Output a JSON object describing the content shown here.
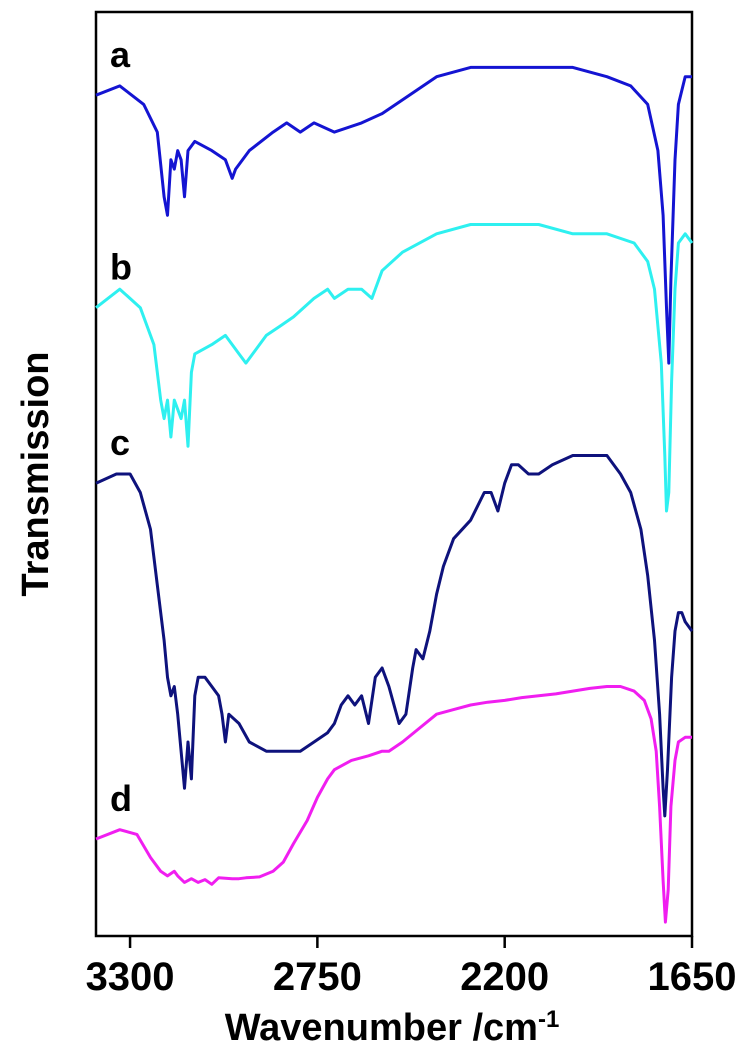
{
  "chart_data": {
    "type": "line",
    "xlabel": "Wavenumber /cm",
    "xlabel_superscript": "-1",
    "ylabel": "Transmission",
    "xlim": [
      3400,
      1650
    ],
    "x_reversed": true,
    "xticks": [
      3300,
      2750,
      2200,
      1650
    ],
    "y_ticks_shown": false,
    "grid": false,
    "series": [
      {
        "name": "a",
        "color": "#1414d2",
        "points": [
          [
            3400,
            0.91
          ],
          [
            3330,
            0.92
          ],
          [
            3260,
            0.9
          ],
          [
            3220,
            0.87
          ],
          [
            3200,
            0.8
          ],
          [
            3190,
            0.78
          ],
          [
            3180,
            0.84
          ],
          [
            3170,
            0.83
          ],
          [
            3160,
            0.85
          ],
          [
            3150,
            0.84
          ],
          [
            3140,
            0.8
          ],
          [
            3130,
            0.85
          ],
          [
            3110,
            0.86
          ],
          [
            3060,
            0.85
          ],
          [
            3020,
            0.84
          ],
          [
            3000,
            0.82
          ],
          [
            2990,
            0.83
          ],
          [
            2950,
            0.85
          ],
          [
            2880,
            0.87
          ],
          [
            2840,
            0.88
          ],
          [
            2800,
            0.87
          ],
          [
            2760,
            0.88
          ],
          [
            2700,
            0.87
          ],
          [
            2620,
            0.88
          ],
          [
            2560,
            0.89
          ],
          [
            2480,
            0.91
          ],
          [
            2400,
            0.93
          ],
          [
            2300,
            0.94
          ],
          [
            2200,
            0.94
          ],
          [
            2100,
            0.94
          ],
          [
            2000,
            0.94
          ],
          [
            1900,
            0.93
          ],
          [
            1830,
            0.92
          ],
          [
            1780,
            0.9
          ],
          [
            1750,
            0.85
          ],
          [
            1735,
            0.78
          ],
          [
            1725,
            0.68
          ],
          [
            1718,
            0.62
          ],
          [
            1712,
            0.71
          ],
          [
            1700,
            0.84
          ],
          [
            1690,
            0.9
          ],
          [
            1670,
            0.93
          ],
          [
            1650,
            0.93
          ]
        ]
      },
      {
        "name": "b",
        "color": "#2ef0f0",
        "points": [
          [
            3400,
            0.68
          ],
          [
            3330,
            0.7
          ],
          [
            3270,
            0.68
          ],
          [
            3230,
            0.64
          ],
          [
            3210,
            0.58
          ],
          [
            3200,
            0.56
          ],
          [
            3190,
            0.58
          ],
          [
            3180,
            0.54
          ],
          [
            3170,
            0.58
          ],
          [
            3160,
            0.57
          ],
          [
            3150,
            0.56
          ],
          [
            3140,
            0.58
          ],
          [
            3130,
            0.53
          ],
          [
            3120,
            0.61
          ],
          [
            3110,
            0.63
          ],
          [
            3060,
            0.64
          ],
          [
            3020,
            0.65
          ],
          [
            3000,
            0.64
          ],
          [
            2980,
            0.63
          ],
          [
            2960,
            0.62
          ],
          [
            2940,
            0.63
          ],
          [
            2900,
            0.65
          ],
          [
            2860,
            0.66
          ],
          [
            2820,
            0.67
          ],
          [
            2760,
            0.69
          ],
          [
            2720,
            0.7
          ],
          [
            2700,
            0.69
          ],
          [
            2660,
            0.7
          ],
          [
            2620,
            0.7
          ],
          [
            2590,
            0.69
          ],
          [
            2560,
            0.72
          ],
          [
            2500,
            0.74
          ],
          [
            2400,
            0.76
          ],
          [
            2300,
            0.77
          ],
          [
            2200,
            0.77
          ],
          [
            2100,
            0.77
          ],
          [
            2000,
            0.76
          ],
          [
            1900,
            0.76
          ],
          [
            1820,
            0.75
          ],
          [
            1780,
            0.73
          ],
          [
            1760,
            0.7
          ],
          [
            1740,
            0.62
          ],
          [
            1730,
            0.52
          ],
          [
            1725,
            0.46
          ],
          [
            1718,
            0.48
          ],
          [
            1710,
            0.6
          ],
          [
            1700,
            0.7
          ],
          [
            1690,
            0.75
          ],
          [
            1670,
            0.76
          ],
          [
            1650,
            0.75
          ]
        ]
      },
      {
        "name": "c",
        "color": "#0e127c",
        "points": [
          [
            3400,
            0.49
          ],
          [
            3340,
            0.5
          ],
          [
            3300,
            0.5
          ],
          [
            3270,
            0.48
          ],
          [
            3240,
            0.44
          ],
          [
            3220,
            0.38
          ],
          [
            3200,
            0.32
          ],
          [
            3190,
            0.28
          ],
          [
            3180,
            0.26
          ],
          [
            3170,
            0.27
          ],
          [
            3160,
            0.24
          ],
          [
            3150,
            0.2
          ],
          [
            3140,
            0.16
          ],
          [
            3130,
            0.21
          ],
          [
            3120,
            0.17
          ],
          [
            3110,
            0.26
          ],
          [
            3100,
            0.28
          ],
          [
            3080,
            0.28
          ],
          [
            3060,
            0.27
          ],
          [
            3040,
            0.26
          ],
          [
            3030,
            0.24
          ],
          [
            3020,
            0.21
          ],
          [
            3010,
            0.24
          ],
          [
            2980,
            0.23
          ],
          [
            2950,
            0.21
          ],
          [
            2900,
            0.2
          ],
          [
            2850,
            0.2
          ],
          [
            2800,
            0.2
          ],
          [
            2760,
            0.21
          ],
          [
            2720,
            0.22
          ],
          [
            2700,
            0.23
          ],
          [
            2680,
            0.25
          ],
          [
            2660,
            0.26
          ],
          [
            2640,
            0.25
          ],
          [
            2620,
            0.26
          ],
          [
            2600,
            0.23
          ],
          [
            2580,
            0.28
          ],
          [
            2560,
            0.29
          ],
          [
            2540,
            0.27
          ],
          [
            2510,
            0.23
          ],
          [
            2490,
            0.24
          ],
          [
            2470,
            0.29
          ],
          [
            2460,
            0.31
          ],
          [
            2440,
            0.3
          ],
          [
            2420,
            0.33
          ],
          [
            2400,
            0.37
          ],
          [
            2380,
            0.4
          ],
          [
            2350,
            0.43
          ],
          [
            2300,
            0.45
          ],
          [
            2260,
            0.48
          ],
          [
            2240,
            0.48
          ],
          [
            2220,
            0.46
          ],
          [
            2200,
            0.49
          ],
          [
            2180,
            0.51
          ],
          [
            2160,
            0.51
          ],
          [
            2130,
            0.5
          ],
          [
            2100,
            0.5
          ],
          [
            2060,
            0.51
          ],
          [
            2000,
            0.52
          ],
          [
            1950,
            0.52
          ],
          [
            1900,
            0.52
          ],
          [
            1860,
            0.5
          ],
          [
            1830,
            0.48
          ],
          [
            1800,
            0.44
          ],
          [
            1780,
            0.39
          ],
          [
            1760,
            0.32
          ],
          [
            1745,
            0.24
          ],
          [
            1735,
            0.16
          ],
          [
            1730,
            0.13
          ],
          [
            1722,
            0.18
          ],
          [
            1710,
            0.28
          ],
          [
            1700,
            0.33
          ],
          [
            1690,
            0.35
          ],
          [
            1680,
            0.35
          ],
          [
            1670,
            0.34
          ],
          [
            1650,
            0.33
          ]
        ]
      },
      {
        "name": "d",
        "color": "#f01ef0",
        "points": [
          [
            3400,
            0.105
          ],
          [
            3330,
            0.115
          ],
          [
            3280,
            0.11
          ],
          [
            3240,
            0.085
          ],
          [
            3210,
            0.07
          ],
          [
            3190,
            0.065
          ],
          [
            3170,
            0.07
          ],
          [
            3160,
            0.065
          ],
          [
            3140,
            0.058
          ],
          [
            3120,
            0.062
          ],
          [
            3100,
            0.058
          ],
          [
            3080,
            0.061
          ],
          [
            3060,
            0.056
          ],
          [
            3040,
            0.063
          ],
          [
            3000,
            0.062
          ],
          [
            2980,
            0.062
          ],
          [
            2960,
            0.063
          ],
          [
            2920,
            0.064
          ],
          [
            2880,
            0.07
          ],
          [
            2850,
            0.08
          ],
          [
            2820,
            0.1
          ],
          [
            2780,
            0.125
          ],
          [
            2750,
            0.15
          ],
          [
            2720,
            0.17
          ],
          [
            2700,
            0.18
          ],
          [
            2650,
            0.19
          ],
          [
            2600,
            0.195
          ],
          [
            2560,
            0.2
          ],
          [
            2540,
            0.2
          ],
          [
            2500,
            0.21
          ],
          [
            2450,
            0.225
          ],
          [
            2400,
            0.24
          ],
          [
            2350,
            0.245
          ],
          [
            2300,
            0.25
          ],
          [
            2250,
            0.253
          ],
          [
            2200,
            0.255
          ],
          [
            2150,
            0.258
          ],
          [
            2100,
            0.26
          ],
          [
            2050,
            0.262
          ],
          [
            2000,
            0.265
          ],
          [
            1950,
            0.268
          ],
          [
            1900,
            0.27
          ],
          [
            1860,
            0.27
          ],
          [
            1820,
            0.265
          ],
          [
            1790,
            0.255
          ],
          [
            1770,
            0.235
          ],
          [
            1755,
            0.2
          ],
          [
            1745,
            0.14
          ],
          [
            1735,
            0.06
          ],
          [
            1728,
            0.015
          ],
          [
            1720,
            0.05
          ],
          [
            1712,
            0.14
          ],
          [
            1700,
            0.19
          ],
          [
            1690,
            0.21
          ],
          [
            1670,
            0.215
          ],
          [
            1650,
            0.215
          ]
        ]
      }
    ]
  }
}
